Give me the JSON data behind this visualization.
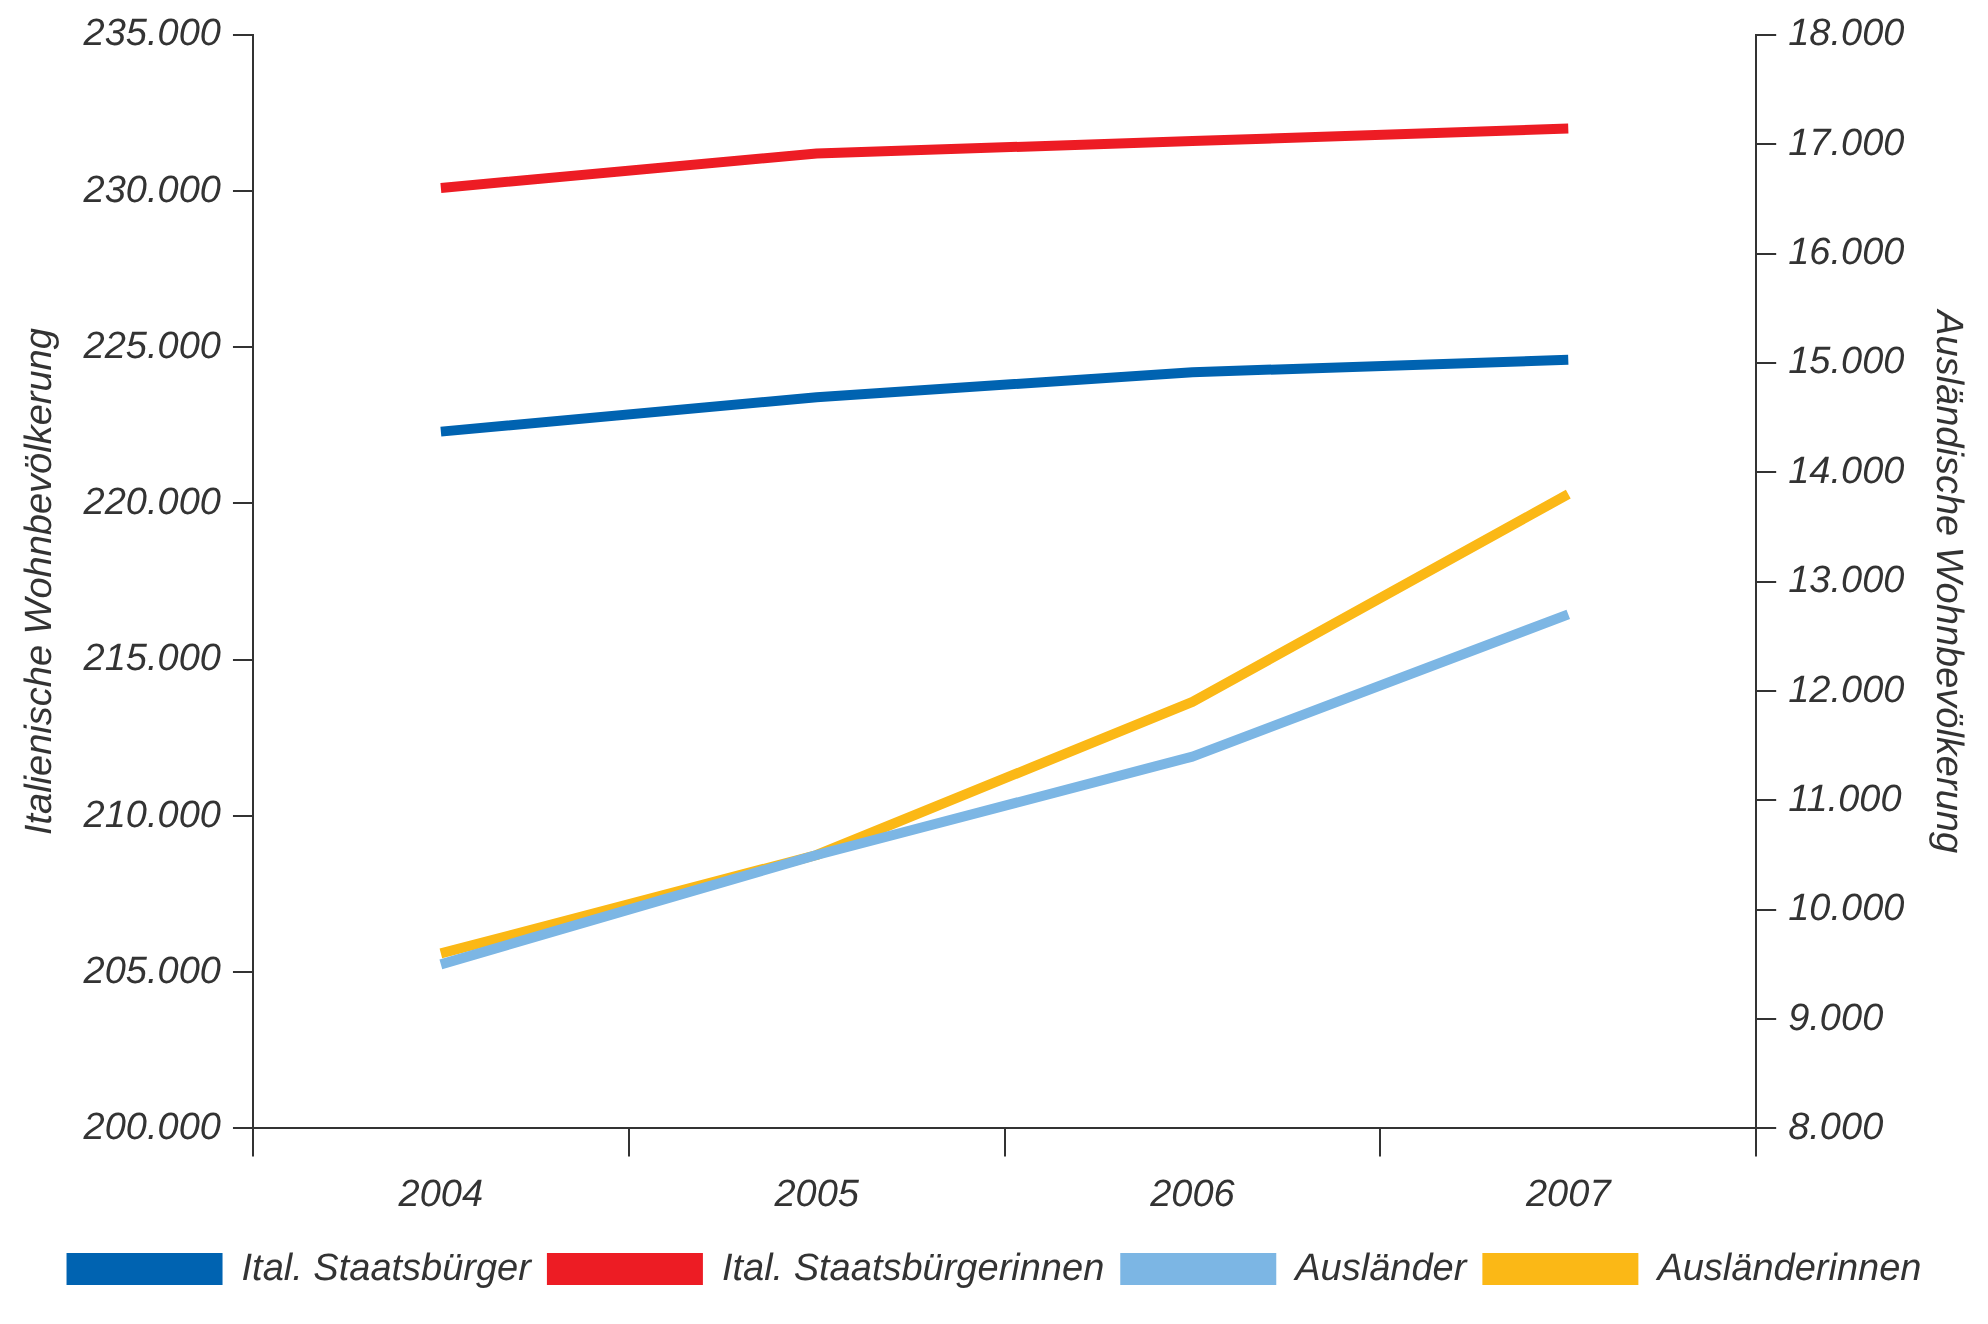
{
  "chart_data": {
    "type": "line",
    "xlabel": null,
    "ylabel": "Italienische Wohnbevölkerung",
    "y2label": "Ausländische Wohnbevölkerung",
    "categories": [
      "2004",
      "2005",
      "2006",
      "2007"
    ],
    "series": [
      {
        "name": "Ital. Staatsbürger",
        "color": "#0063b1",
        "values": [
          222300,
          223400,
          224200,
          224600
        ]
      },
      {
        "name": "Ital. Staatsbürgerinnen",
        "color": "#ed1c24",
        "values": [
          230100,
          231200,
          231600,
          232000
        ]
      },
      {
        "name": "Ausländer",
        "color": "#7cb6e4",
        "axis": "y2",
        "values": [
          9500,
          10500,
          11400,
          12700
        ]
      },
      {
        "name": "Ausländerinnen",
        "color": "#fbb816",
        "axis": "y2",
        "values": [
          9600,
          10500,
          11900,
          13800
        ]
      }
    ],
    "ylim": [
      200000,
      235000
    ],
    "yticks": [
      {
        "value": 200000,
        "label": "200.000"
      },
      {
        "value": 205000,
        "label": "205.000"
      },
      {
        "value": 210000,
        "label": "210.000"
      },
      {
        "value": 215000,
        "label": "215.000"
      },
      {
        "value": 220000,
        "label": "220.000"
      },
      {
        "value": 225000,
        "label": "225.000"
      },
      {
        "value": 230000,
        "label": "230.000"
      },
      {
        "value": 235000,
        "label": "235.000"
      }
    ],
    "y2lim": [
      8000,
      18000
    ],
    "y2ticks": [
      {
        "value": 8000,
        "label": "8.000"
      },
      {
        "value": 9000,
        "label": "9.000"
      },
      {
        "value": 10000,
        "label": "10.000"
      },
      {
        "value": 11000,
        "label": "11.000"
      },
      {
        "value": 12000,
        "label": "12.000"
      },
      {
        "value": 13000,
        "label": "13.000"
      },
      {
        "value": 14000,
        "label": "14.000"
      },
      {
        "value": 15000,
        "label": "15.000"
      },
      {
        "value": 16000,
        "label": "16.000"
      },
      {
        "value": 17000,
        "label": "17.000"
      },
      {
        "value": 18000,
        "label": "18.000"
      }
    ],
    "grid": false,
    "legend": "bottom",
    "marker": "none",
    "line_style": "solid"
  }
}
